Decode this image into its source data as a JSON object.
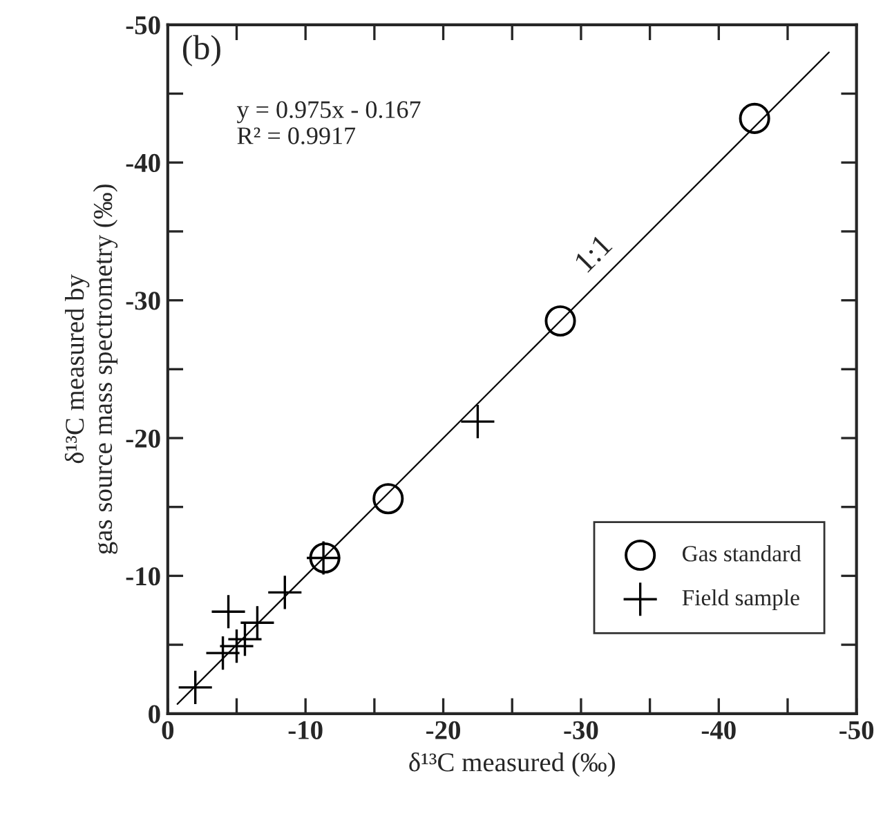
{
  "chart_data": {
    "type": "scatter",
    "xlabel": "δ¹³C measured (‰)",
    "ylabel": "δ¹³C measured by\ngas source mass spectrometry (‰)",
    "xlim": [
      0,
      -50
    ],
    "ylim": [
      0,
      -50
    ],
    "xticks": [
      0,
      {
        "value": -5,
        "label": null
      },
      {
        "value": -10,
        "label": "-10"
      },
      {
        "value": -15,
        "label": null
      },
      {
        "value": -20,
        "label": "-20"
      },
      {
        "value": -25,
        "label": null
      },
      {
        "value": -30,
        "label": "-30"
      },
      {
        "value": -35,
        "label": null
      },
      {
        "value": -40,
        "label": "-40"
      },
      {
        "value": -45,
        "label": null
      },
      {
        "value": -50,
        "label": "-50"
      }
    ],
    "yticks": [
      0,
      {
        "value": -5,
        "label": null
      },
      {
        "value": -10,
        "label": "-10"
      },
      {
        "value": -15,
        "label": null
      },
      {
        "value": -20,
        "label": "-20"
      },
      {
        "value": -25,
        "label": null
      },
      {
        "value": -30,
        "label": "-30"
      },
      {
        "value": -35,
        "label": null
      },
      {
        "value": -40,
        "label": "-40"
      },
      {
        "value": -45,
        "label": null
      },
      {
        "value": -50,
        "label": "-50"
      }
    ],
    "series": [
      {
        "type": "line",
        "color": "#000000",
        "marker": "none",
        "line_style": "solid",
        "x": [
          -0.7,
          -48
        ],
        "values": [
          -0.7,
          -48
        ]
      },
      {
        "name": "Gas standard",
        "color": "#000000",
        "marker": "circle",
        "x": [
          -11.4,
          -16.0,
          -28.5,
          -42.6
        ],
        "values": [
          -11.3,
          -15.6,
          -28.5,
          -43.2
        ]
      },
      {
        "name": "Field sample",
        "color": "#000000",
        "marker": "cross",
        "x": [
          -2.0,
          -4.0,
          -4.4,
          -5.0,
          -5.6,
          -6.5,
          -8.5,
          -11.3,
          -22.5
        ],
        "values": [
          -1.9,
          -4.4,
          -7.4,
          -4.9,
          -5.4,
          -6.6,
          -8.8,
          -11.3,
          -21.2
        ]
      }
    ],
    "annotations": [
      "(b)",
      "y = 0.975x - 0.167\nR² = 0.9917",
      "1:1"
    ],
    "legend": "bottom right",
    "grid": false
  }
}
